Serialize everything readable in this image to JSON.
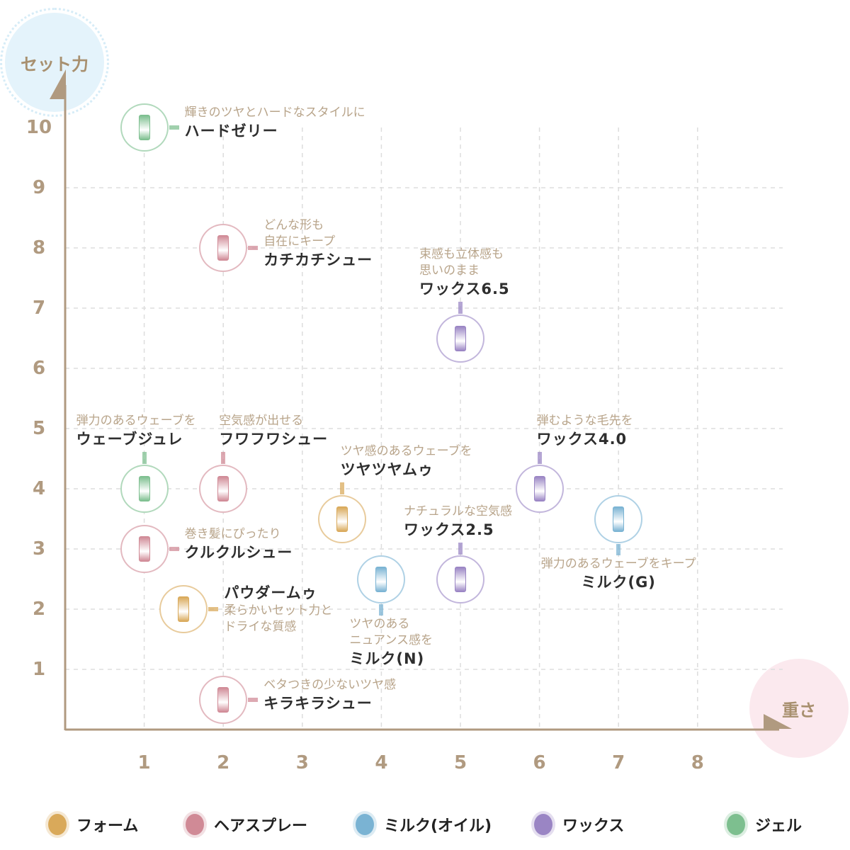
{
  "chart_data": {
    "type": "scatter",
    "xlabel": "重さ",
    "ylabel": "セット力",
    "xlim": [
      0,
      8
    ],
    "ylim": [
      0,
      10
    ],
    "x_ticks": [
      "1",
      "2",
      "3",
      "4",
      "5",
      "6",
      "7",
      "8"
    ],
    "y_ticks": [
      "1",
      "2",
      "3",
      "4",
      "5",
      "6",
      "7",
      "8",
      "9",
      "10"
    ],
    "grid": true,
    "legend_placement": "bottom",
    "categories": [
      {
        "key": "foam",
        "name": "フォーム",
        "color": "#d9a95a"
      },
      {
        "key": "spray",
        "name": "ヘアスプレー",
        "color": "#d08a96"
      },
      {
        "key": "milk",
        "name": "ミルク(オイル)",
        "color": "#7ab3d3"
      },
      {
        "key": "wax",
        "name": "ワックス",
        "color": "#9a85c4"
      },
      {
        "key": "gel",
        "name": "ジェル",
        "color": "#7dbf8f"
      }
    ],
    "points": [
      {
        "name": "ハードゼリー",
        "desc": [
          "輝きのツヤとハードなスタイルに"
        ],
        "x": 1,
        "y": 10,
        "category": "gel",
        "label": "right"
      },
      {
        "name": "カチカチシュー",
        "desc": [
          "どんな形も",
          "自在にキープ"
        ],
        "x": 2,
        "y": 8,
        "category": "spray",
        "label": "right"
      },
      {
        "name": "ワックス6.5",
        "desc": [
          "束感も立体感も",
          "思いのまま"
        ],
        "x": 5,
        "y": 6.5,
        "category": "wax",
        "label": "above"
      },
      {
        "name": "ウェーブジュレ",
        "desc": [
          "弾力のあるウェーブを"
        ],
        "x": 1,
        "y": 4,
        "category": "gel",
        "label": "above"
      },
      {
        "name": "フワフワシュー",
        "desc": [
          "空気感が出せる"
        ],
        "x": 2,
        "y": 4,
        "category": "spray",
        "label": "above"
      },
      {
        "name": "ツヤツヤムゥ",
        "desc": [
          "ツヤ感のあるウェーブを"
        ],
        "x": 3.5,
        "y": 3.5,
        "category": "foam",
        "label": "above"
      },
      {
        "name": "ワックス4.0",
        "desc": [
          "弾むような毛先を"
        ],
        "x": 6,
        "y": 4,
        "category": "wax",
        "label": "above"
      },
      {
        "name": "ミルク(G)",
        "desc": [
          "弾力のあるウェーブをキープ"
        ],
        "x": 7,
        "y": 3.5,
        "category": "milk",
        "label": "below"
      },
      {
        "name": "ワックス2.5",
        "desc": [
          "ナチュラルな空気感"
        ],
        "x": 5,
        "y": 2.5,
        "category": "wax",
        "label": "above"
      },
      {
        "name": "クルクルシュー",
        "desc": [
          "巻き髪にぴったり"
        ],
        "x": 1,
        "y": 3,
        "category": "spray",
        "label": "right"
      },
      {
        "name": "ミルク(N)",
        "desc": [
          "ツヤのある",
          "ニュアンス感を"
        ],
        "x": 4,
        "y": 2.5,
        "category": "milk",
        "label": "below"
      },
      {
        "name": "パウダームゥ",
        "desc": [
          "柔らかいセット力と",
          "ドライな質感"
        ],
        "x": 1.5,
        "y": 2,
        "category": "foam",
        "label": "right-nametop"
      },
      {
        "name": "キラキラシュー",
        "desc": [
          "ベタつきの少ないツヤ感"
        ],
        "x": 2,
        "y": 0.5,
        "category": "spray",
        "label": "right"
      }
    ]
  }
}
